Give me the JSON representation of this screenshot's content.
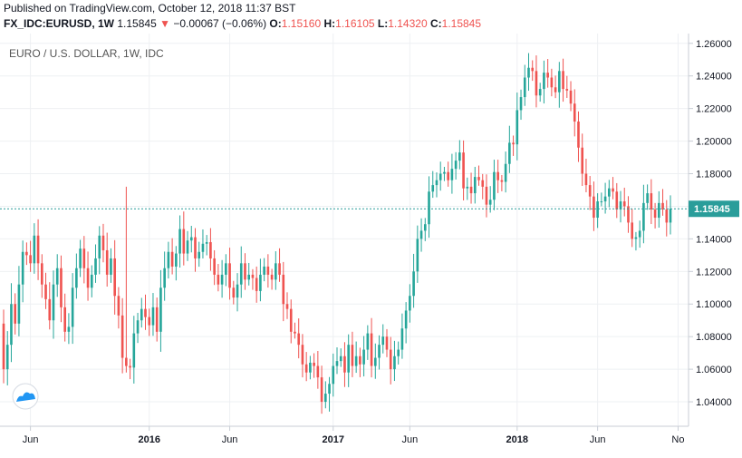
{
  "header": {
    "published": "Published on TradingView.com, October 12, 2018 11:37 BST",
    "symbol": "FX_IDC:EURUSD, 1W",
    "last": "1.15845",
    "change": "−0.00067 (−0.06%)",
    "o_label": "O:",
    "o_value": "1.15160",
    "h_label": "H:",
    "h_value": "1.16105",
    "l_label": "L:",
    "l_value": "1.14320",
    "c_label": "C:",
    "c_value": "1.15845"
  },
  "colors": {
    "up": "#26a69a",
    "down": "#ef5350",
    "last_line": "#2a9d9a",
    "grid": "#eef0f3"
  },
  "icons": {
    "watermark": "tradingview-cloud-icon",
    "change_arrow": "triangle-down-icon"
  },
  "chart_data": {
    "type": "candlestick",
    "title": "EURO / U.S. DOLLAR, 1W, IDC",
    "ylim": [
      1.025,
      1.266
    ],
    "y_ticks": [
      "1.26000",
      "1.24000",
      "1.22000",
      "1.20000",
      "1.18000",
      "1.16000",
      "1.14000",
      "1.12000",
      "1.10000",
      "1.08000",
      "1.06000",
      "1.04000"
    ],
    "x_ticks": [
      {
        "label": "Jun",
        "bold": false,
        "i": 7
      },
      {
        "label": "2016",
        "bold": true,
        "i": 38
      },
      {
        "label": "Jun",
        "bold": false,
        "i": 59
      },
      {
        "label": "2017",
        "bold": true,
        "i": 86
      },
      {
        "label": "Jun",
        "bold": false,
        "i": 106
      },
      {
        "label": "2018",
        "bold": true,
        "i": 134
      },
      {
        "label": "Jun",
        "bold": false,
        "i": 155
      },
      {
        "label": "No",
        "bold": false,
        "i": 176
      }
    ],
    "last_value": "1.15845",
    "closes": [
      1.06,
      1.075,
      1.1,
      1.088,
      1.112,
      1.132,
      1.13,
      1.125,
      1.142,
      1.125,
      1.112,
      1.103,
      1.09,
      1.112,
      1.122,
      1.098,
      1.083,
      1.086,
      1.11,
      1.122,
      1.134,
      1.122,
      1.11,
      1.118,
      1.128,
      1.142,
      1.133,
      1.118,
      1.128,
      1.105,
      1.093,
      1.067,
      1.062,
      1.061,
      1.082,
      1.09,
      1.097,
      1.092,
      1.087,
      1.098,
      1.083,
      1.11,
      1.122,
      1.132,
      1.123,
      1.131,
      1.146,
      1.131,
      1.139,
      1.141,
      1.128,
      1.132,
      1.137,
      1.138,
      1.128,
      1.118,
      1.112,
      1.118,
      1.125,
      1.11,
      1.104,
      1.112,
      1.125,
      1.115,
      1.118,
      1.116,
      1.108,
      1.118,
      1.123,
      1.118,
      1.115,
      1.125,
      1.118,
      1.1,
      1.097,
      1.083,
      1.082,
      1.075,
      1.063,
      1.058,
      1.064,
      1.062,
      1.055,
      1.04,
      1.045,
      1.051,
      1.062,
      1.065,
      1.068,
      1.058,
      1.075,
      1.062,
      1.068,
      1.063,
      1.072,
      1.082,
      1.062,
      1.067,
      1.075,
      1.08,
      1.072,
      1.06,
      1.068,
      1.072,
      1.085,
      1.096,
      1.105,
      1.12,
      1.14,
      1.145,
      1.149,
      1.169,
      1.173,
      1.176,
      1.18,
      1.181,
      1.176,
      1.183,
      1.188,
      1.193,
      1.171,
      1.172,
      1.168,
      1.178,
      1.176,
      1.172,
      1.161,
      1.164,
      1.181,
      1.176,
      1.175,
      1.186,
      1.199,
      1.198,
      1.219,
      1.227,
      1.239,
      1.245,
      1.243,
      1.228,
      1.232,
      1.242,
      1.239,
      1.233,
      1.23,
      1.243,
      1.232,
      1.231,
      1.223,
      1.212,
      1.196,
      1.18,
      1.173,
      1.166,
      1.153,
      1.163,
      1.163,
      1.166,
      1.171,
      1.169,
      1.158,
      1.163,
      1.16,
      1.15,
      1.14,
      1.141,
      1.145,
      1.162,
      1.168,
      1.158,
      1.153,
      1.162,
      1.158,
      1.15,
      1.15845
    ]
  }
}
